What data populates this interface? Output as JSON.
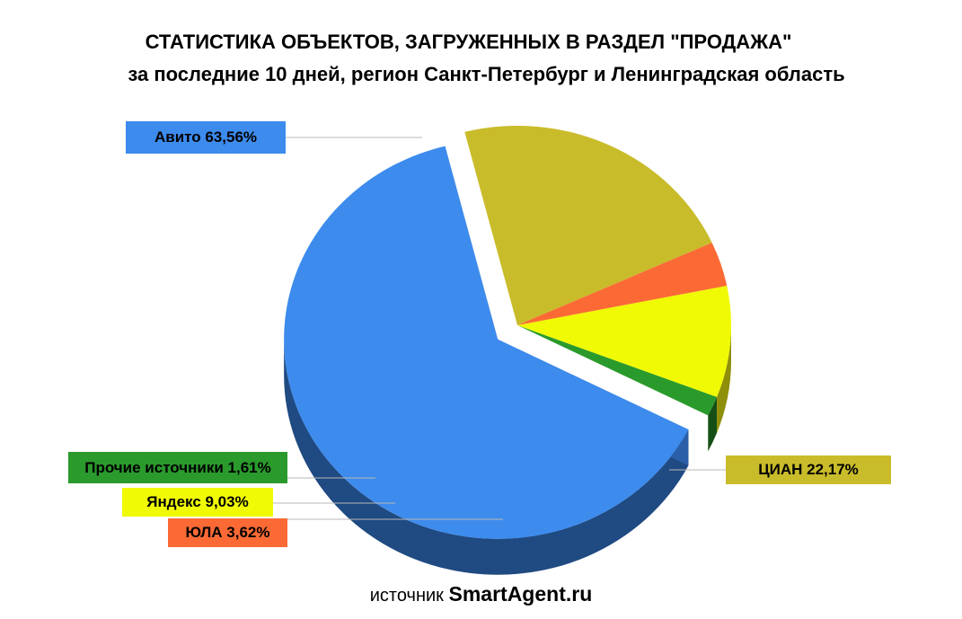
{
  "header": {
    "title": "СТАТИСТИКА ОБЪЕКТОВ, ЗАГРУЖЕННЫХ В РАЗДЕЛ \"ПРОДАЖА\"",
    "subtitle": "за последние 10 дней, регион Санкт-Петербург и Ленинградская область"
  },
  "chart_data": {
    "type": "pie",
    "three_d": true,
    "exploded_slice": "Авито",
    "slices": [
      {
        "name": "Авито",
        "value": 63.56,
        "label": "Авито  63,56%",
        "color": "#3d8bed",
        "side_color": "#1f4a82"
      },
      {
        "name": "ЦИАН",
        "value": 22.17,
        "label": "ЦИАН   22,17%",
        "color": "#c9bc2a",
        "side_color": "#7c7310"
      },
      {
        "name": "ЮЛА",
        "value": 3.62,
        "label": "ЮЛА 3,62%",
        "color": "#fb6a35",
        "side_color": "#c24a22"
      },
      {
        "name": "Яндекс",
        "value": 9.03,
        "label": "Яндекс 9,03%",
        "color": "#f0fa04",
        "side_color": "#8f8f0a"
      },
      {
        "name": "Прочие источники",
        "value": 1.61,
        "label": "Прочие источники  1,61%",
        "color": "#2a9a2c",
        "side_color": "#154f16"
      }
    ],
    "legend": "none"
  },
  "footer": {
    "prefix": "источник",
    "brand": "SmartAgent.ru"
  }
}
